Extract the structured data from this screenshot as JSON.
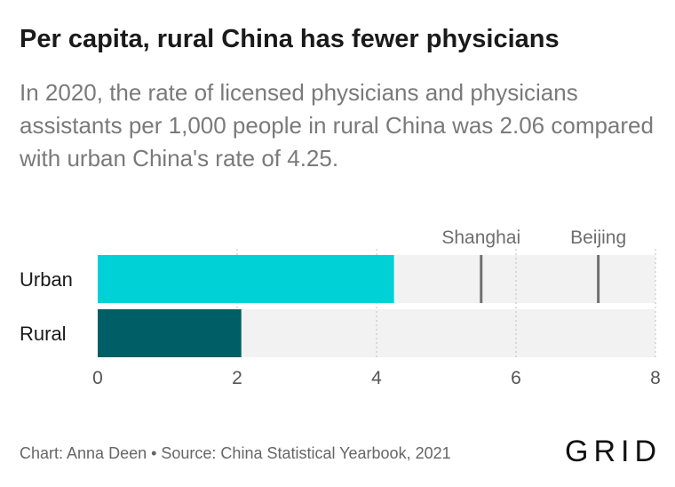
{
  "title": "Per capita, rural China has fewer physicians",
  "subtitle": "In 2020, the rate of licensed physicians and physicians assistants per 1,000 people in rural China was 2.06 compared with urban China's rate of 4.25.",
  "footer": {
    "source": "Chart: Anna Deen • Source: China Statistical Yearbook, 2021",
    "logo": "GRID"
  },
  "chart_data": {
    "type": "bar",
    "orientation": "horizontal",
    "categories": [
      "Urban",
      "Rural"
    ],
    "values": [
      4.25,
      2.06
    ],
    "colors": [
      "#00d1d6",
      "#005f66"
    ],
    "background_bar_color": "#f2f2f2",
    "xlim": [
      0,
      8
    ],
    "xticks": [
      "0",
      "2",
      "4",
      "6",
      "8"
    ],
    "xtick_values": [
      0,
      2,
      4,
      6,
      8
    ],
    "grid": true,
    "reference_lines": [
      {
        "label": "Shanghai",
        "value": 5.5,
        "category": "Urban"
      },
      {
        "label": "Beijing",
        "value": 7.18,
        "category": "Urban"
      }
    ],
    "title": "",
    "xlabel": "",
    "ylabel": ""
  }
}
